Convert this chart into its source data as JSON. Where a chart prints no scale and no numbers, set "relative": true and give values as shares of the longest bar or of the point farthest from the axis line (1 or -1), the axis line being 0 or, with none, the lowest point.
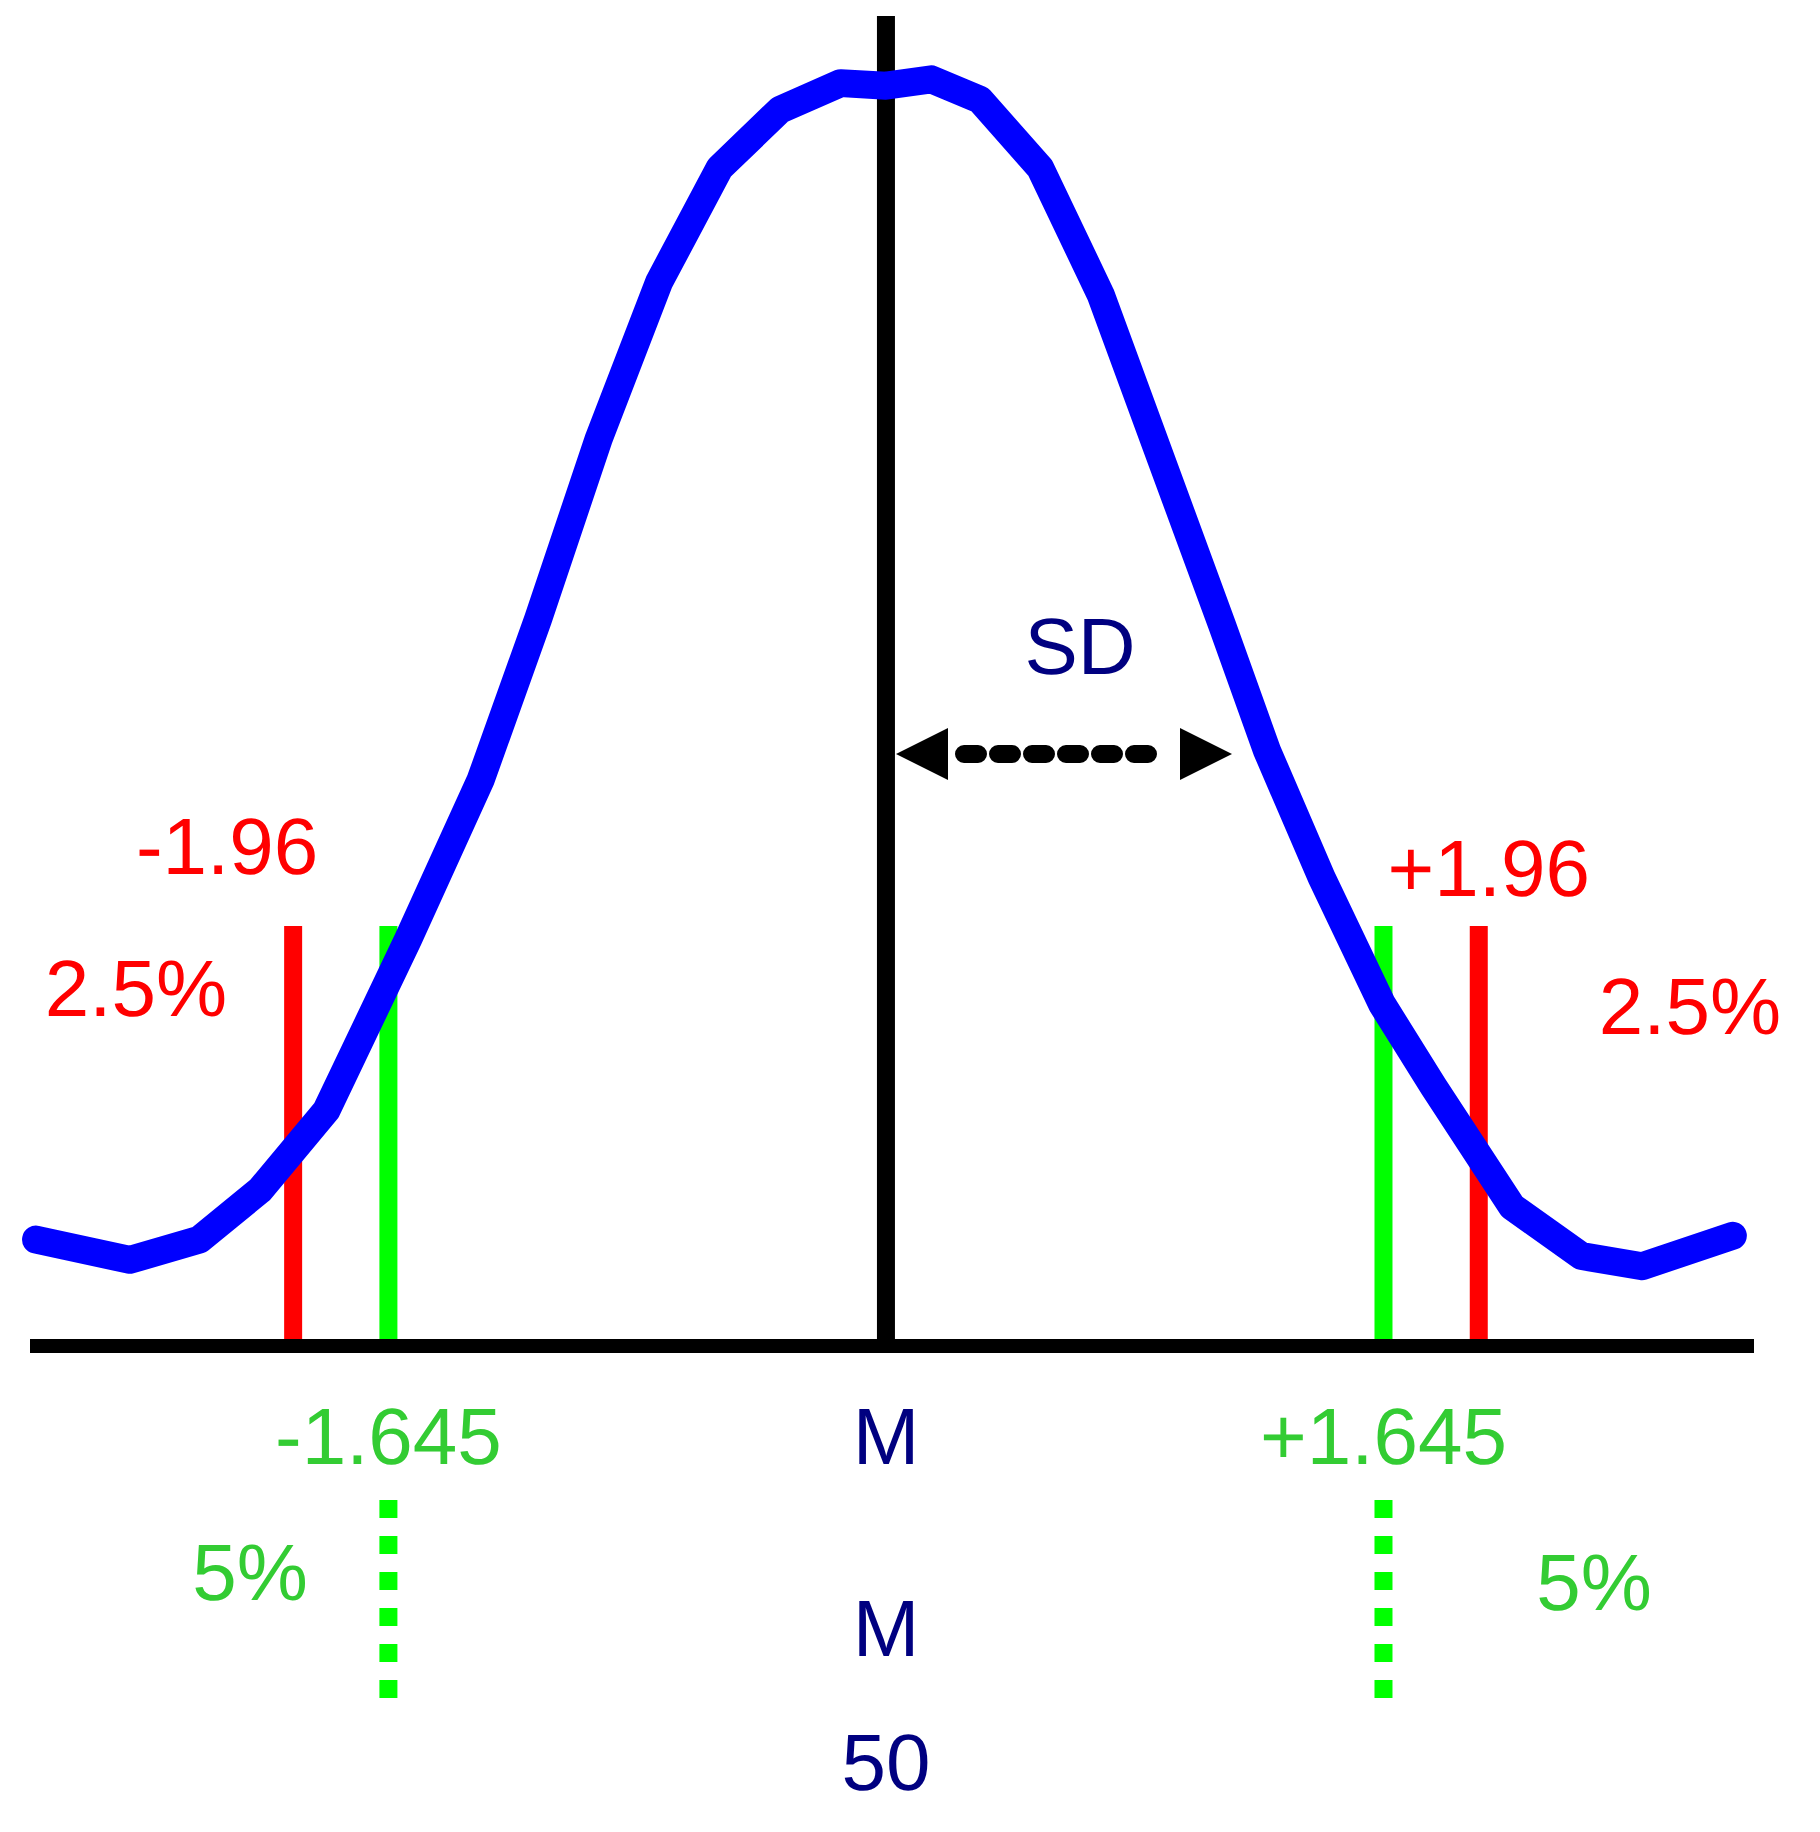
{
  "chart_data": {
    "type": "line",
    "relative": true,
    "x": [
      -2.81,
      -2.5,
      -2.27,
      -2.07,
      -1.85,
      -1.58,
      -1.34,
      -1.15,
      -0.95,
      -0.75,
      -0.55,
      -0.35,
      -0.15,
      0,
      0.15,
      0.31,
      0.51,
      0.71,
      0.91,
      1.11,
      1.26,
      1.44,
      1.64,
      1.81,
      2.07,
      2.3,
      2.5,
      2.8
    ],
    "series": [
      {
        "color": "#0000ff",
        "values": [
          0.084,
          0.068,
          0.084,
          0.123,
          0.186,
          0.321,
          0.447,
          0.574,
          0.716,
          0.84,
          0.93,
          0.976,
          0.997,
          0.995,
          1.0,
          0.984,
          0.93,
          0.83,
          0.7,
          0.57,
          0.47,
          0.37,
          0.27,
          0.205,
          0.11,
          0.071,
          0.063,
          0.087
        ]
      }
    ],
    "xlim": [
      -2.83,
      2.87
    ],
    "xticks": [
      {
        "value": -1.645,
        "label": "-1.645"
      },
      {
        "value": 0,
        "label": "M"
      },
      {
        "value": 1.645,
        "label": "+1.645"
      }
    ],
    "tick_labels": "x",
    "grid": false,
    "legend": false,
    "marker": "none",
    "line_style": "solid",
    "ref_lines": [
      {
        "axis": "x",
        "value": -1.96,
        "label": "-1.96",
        "color": "#ff0000"
      },
      {
        "axis": "x",
        "value": -1.645,
        "color": "#00ff00"
      },
      {
        "axis": "x",
        "value": 0,
        "color": "#000000"
      },
      {
        "axis": "x",
        "value": 1.645,
        "color": "#00ff00"
      },
      {
        "axis": "x",
        "value": 1.96,
        "label": "+1.96",
        "color": "#ff0000"
      }
    ],
    "annotations": [
      "2.5%",
      "2.5%",
      "5%",
      "5%",
      "SD",
      "M",
      "50"
    ]
  }
}
